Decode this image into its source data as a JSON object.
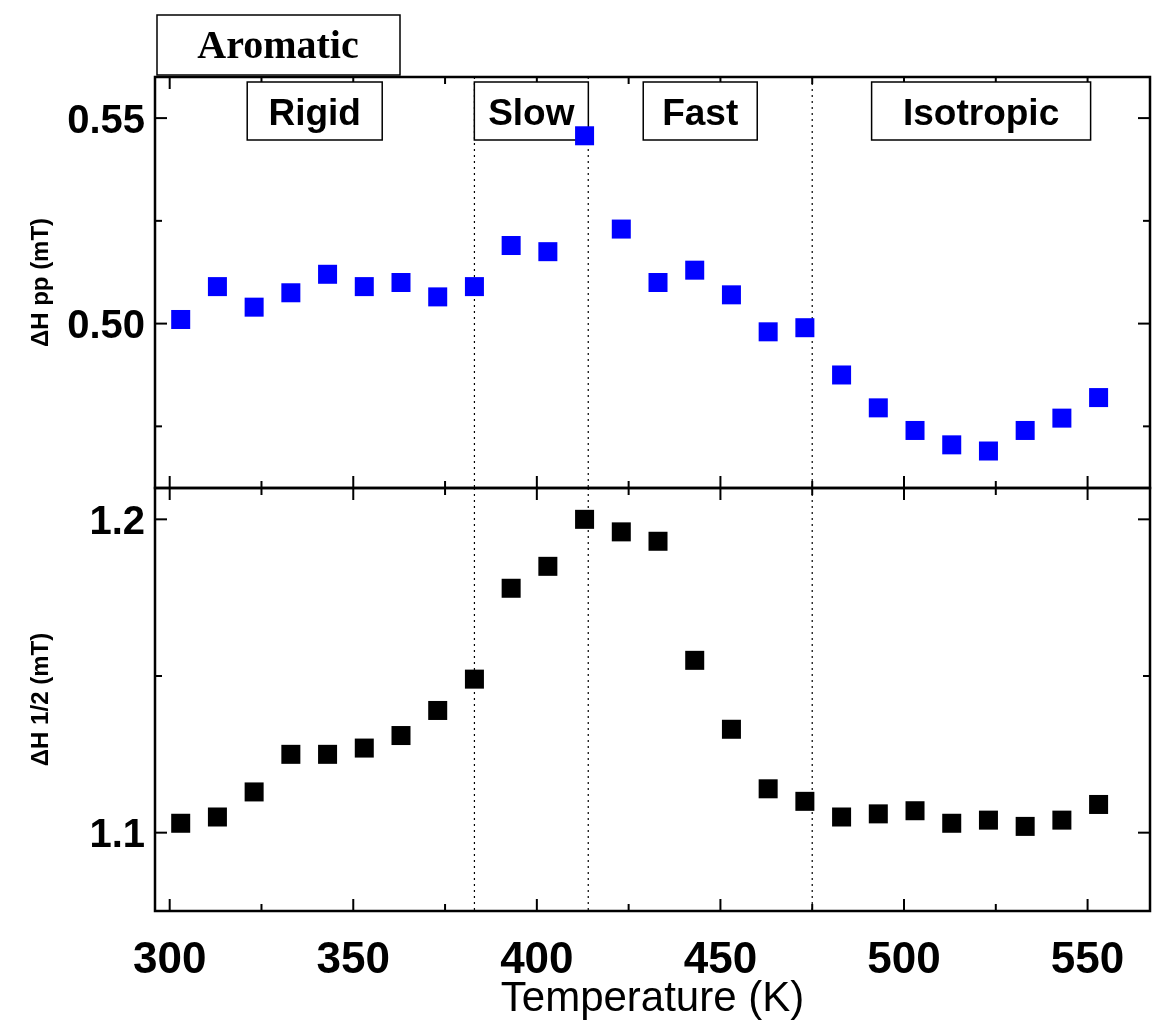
{
  "chart_data": [
    {
      "type": "scatter",
      "title": "Aromatic",
      "ylabel": "ΔH pp (mT)",
      "marker": "square",
      "tick_labels": "y",
      "xlim": [
        296,
        567
      ],
      "xticks": [
        300,
        {
          "value": 325,
          "label": null
        },
        350,
        {
          "value": 375,
          "label": null
        },
        400,
        {
          "value": 425,
          "label": null
        },
        450,
        {
          "value": 475,
          "label": null
        },
        500,
        {
          "value": 525,
          "label": null
        },
        550
      ],
      "ylim": [
        0.46,
        0.56
      ],
      "yticks": [
        {
          "value": 0.475,
          "label": null
        },
        {
          "value": 0.5,
          "label": "0.50"
        },
        {
          "value": 0.525,
          "label": null
        },
        0.55
      ],
      "x": [
        303,
        313,
        323,
        333,
        343,
        353,
        363,
        373,
        383,
        393,
        403,
        413,
        423,
        433,
        443,
        453,
        463,
        473,
        483,
        493,
        503,
        513,
        523,
        533,
        543,
        553
      ],
      "series": [
        {
          "color": "#0000ff",
          "values": [
            0.501,
            0.509,
            0.504,
            0.5075,
            0.512,
            0.509,
            0.51,
            0.5065,
            0.509,
            0.519,
            0.5175,
            0.5457,
            0.523,
            0.51,
            0.513,
            0.507,
            0.498,
            0.499,
            0.4875,
            0.4795,
            0.474,
            0.4705,
            0.469,
            0.474,
            0.477,
            0.482
          ]
        }
      ],
      "ref_lines": [
        {
          "axis": "x",
          "value": 383,
          "color": "#000000",
          "line_style": "dotted"
        },
        {
          "axis": "x",
          "value": 414,
          "color": "#000000",
          "line_style": "dotted"
        },
        {
          "axis": "x",
          "value": 475,
          "color": "#000000",
          "line_style": "dotted"
        }
      ],
      "annotations": [
        "Rigid",
        "Slow",
        "Fast",
        "Isotropic"
      ]
    },
    {
      "type": "scatter",
      "xlabel": "Temperature (K)",
      "ylabel": "ΔH 1/2 (mT)",
      "marker": "square",
      "xlim": [
        296,
        567
      ],
      "xticks": [
        300,
        {
          "value": 325,
          "label": null
        },
        350,
        {
          "value": 375,
          "label": null
        },
        400,
        {
          "value": 425,
          "label": null
        },
        450,
        {
          "value": 475,
          "label": null
        },
        500,
        {
          "value": 525,
          "label": null
        },
        550
      ],
      "ylim": [
        1.075,
        1.21
      ],
      "yticks": [
        1.1,
        {
          "value": 1.15,
          "label": null
        },
        1.2
      ],
      "x": [
        303,
        313,
        323,
        333,
        343,
        353,
        363,
        373,
        383,
        393,
        403,
        413,
        423,
        433,
        443,
        453,
        463,
        473,
        483,
        493,
        503,
        513,
        523,
        533,
        543,
        553
      ],
      "series": [
        {
          "color": "#000000",
          "values": [
            1.103,
            1.105,
            1.113,
            1.125,
            1.125,
            1.127,
            1.131,
            1.139,
            1.149,
            1.178,
            1.185,
            1.2,
            1.196,
            1.193,
            1.155,
            1.133,
            1.114,
            1.11,
            1.105,
            1.106,
            1.107,
            1.103,
            1.104,
            1.102,
            1.104,
            1.109
          ]
        }
      ],
      "ref_lines": [
        {
          "axis": "x",
          "value": 383,
          "color": "#000000",
          "line_style": "dotted"
        },
        {
          "axis": "x",
          "value": 414,
          "color": "#000000",
          "line_style": "dotted"
        },
        {
          "axis": "x",
          "value": 475,
          "color": "#000000",
          "line_style": "dotted"
        }
      ]
    }
  ]
}
